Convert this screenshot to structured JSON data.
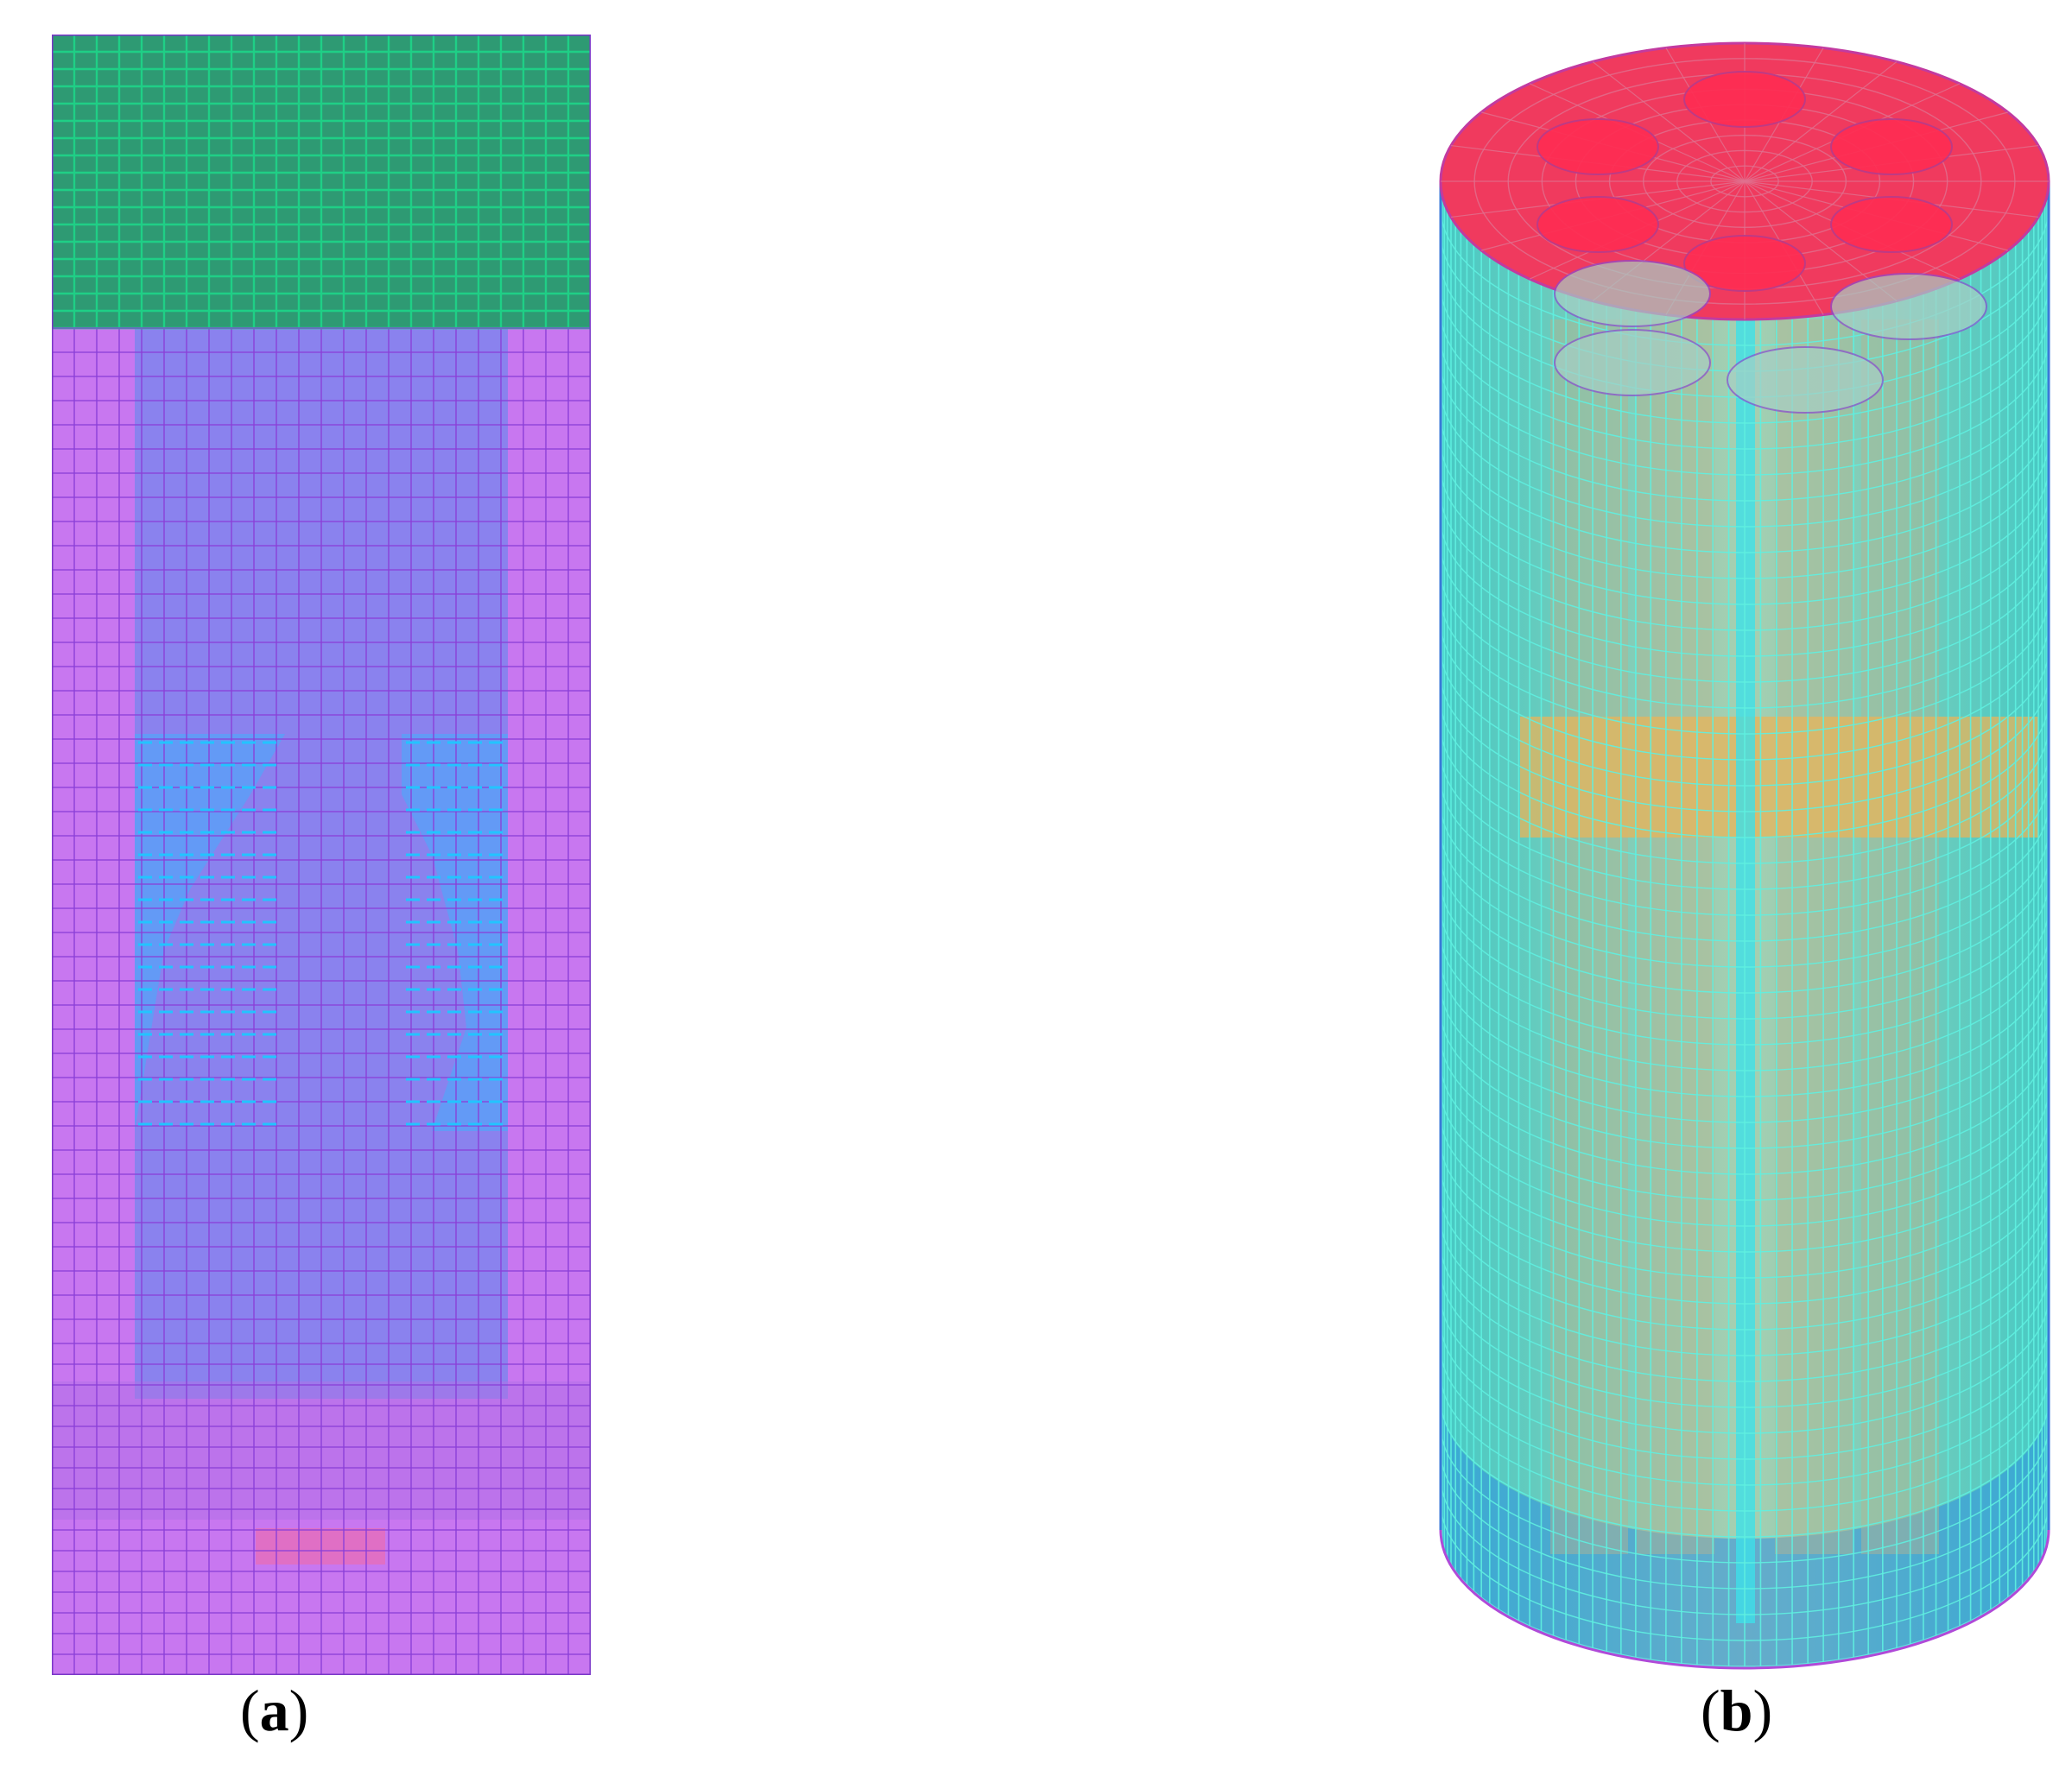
{
  "figure": {
    "panel_a": {
      "label": "a"
    },
    "panel_b": {
      "label": "b"
    }
  },
  "colors": {
    "mesh_top_green": "#2e9a73",
    "mesh_purple": "#c877f0",
    "mesh_blue_inner": "#8a82ee",
    "mesh_cyan_accent": "#33b8ff",
    "cylinder_cap_red": "#f03a5e",
    "cylinder_body_cyan": "#2fd6d6",
    "cylinder_band_orange": "#e8b45a",
    "cylinder_bottom_blue": "#2f8fe0"
  }
}
